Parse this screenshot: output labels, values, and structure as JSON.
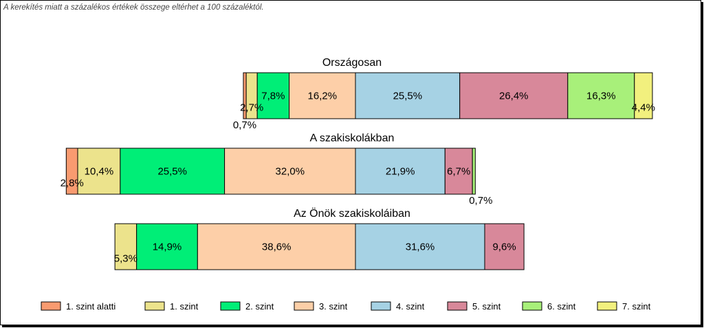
{
  "note": "A kerekítés miatt a  százalékos értékek összege eltérhet a 100 százaléktól.",
  "chart_data": {
    "type": "bar",
    "orientation": "horizontal",
    "stacked": true,
    "diverging": true,
    "legend_position": "bottom",
    "categories": [
      "1. szint alatti",
      "1. szint",
      "2. szint",
      "3. szint",
      "4. szint",
      "5. szint",
      "6. szint",
      "7. szint"
    ],
    "colors": [
      "#f99b70",
      "#ece38c",
      "#00ee77",
      "#fdcfa8",
      "#a6d2e4",
      "#d8889a",
      "#a8f07a",
      "#f2f07e"
    ],
    "bars": [
      {
        "name": "Országosan",
        "values": [
          0.7,
          2.7,
          7.8,
          16.2,
          25.5,
          26.4,
          16.3,
          4.4
        ],
        "labels": [
          "0,7%",
          "2,7%",
          "7,8%",
          "16,2%",
          "25,5%",
          "26,4%",
          "16,3%",
          "4,4%"
        ]
      },
      {
        "name": "A szakiskolákban",
        "values": [
          2.8,
          10.4,
          25.5,
          32.0,
          21.9,
          6.7,
          0.7,
          0
        ],
        "labels": [
          "2,8%",
          "10,4%",
          "25,5%",
          "32,0%",
          "21,9%",
          "6,7%",
          "0,7%",
          ""
        ]
      },
      {
        "name": "Az Önök szakiskoláiban",
        "values": [
          0,
          5.3,
          14.9,
          38.6,
          31.6,
          9.6,
          0,
          0
        ],
        "labels": [
          "",
          "5,3%",
          "14,9%",
          "38,6%",
          "31,6%",
          "9,6%",
          "",
          ""
        ]
      }
    ]
  }
}
